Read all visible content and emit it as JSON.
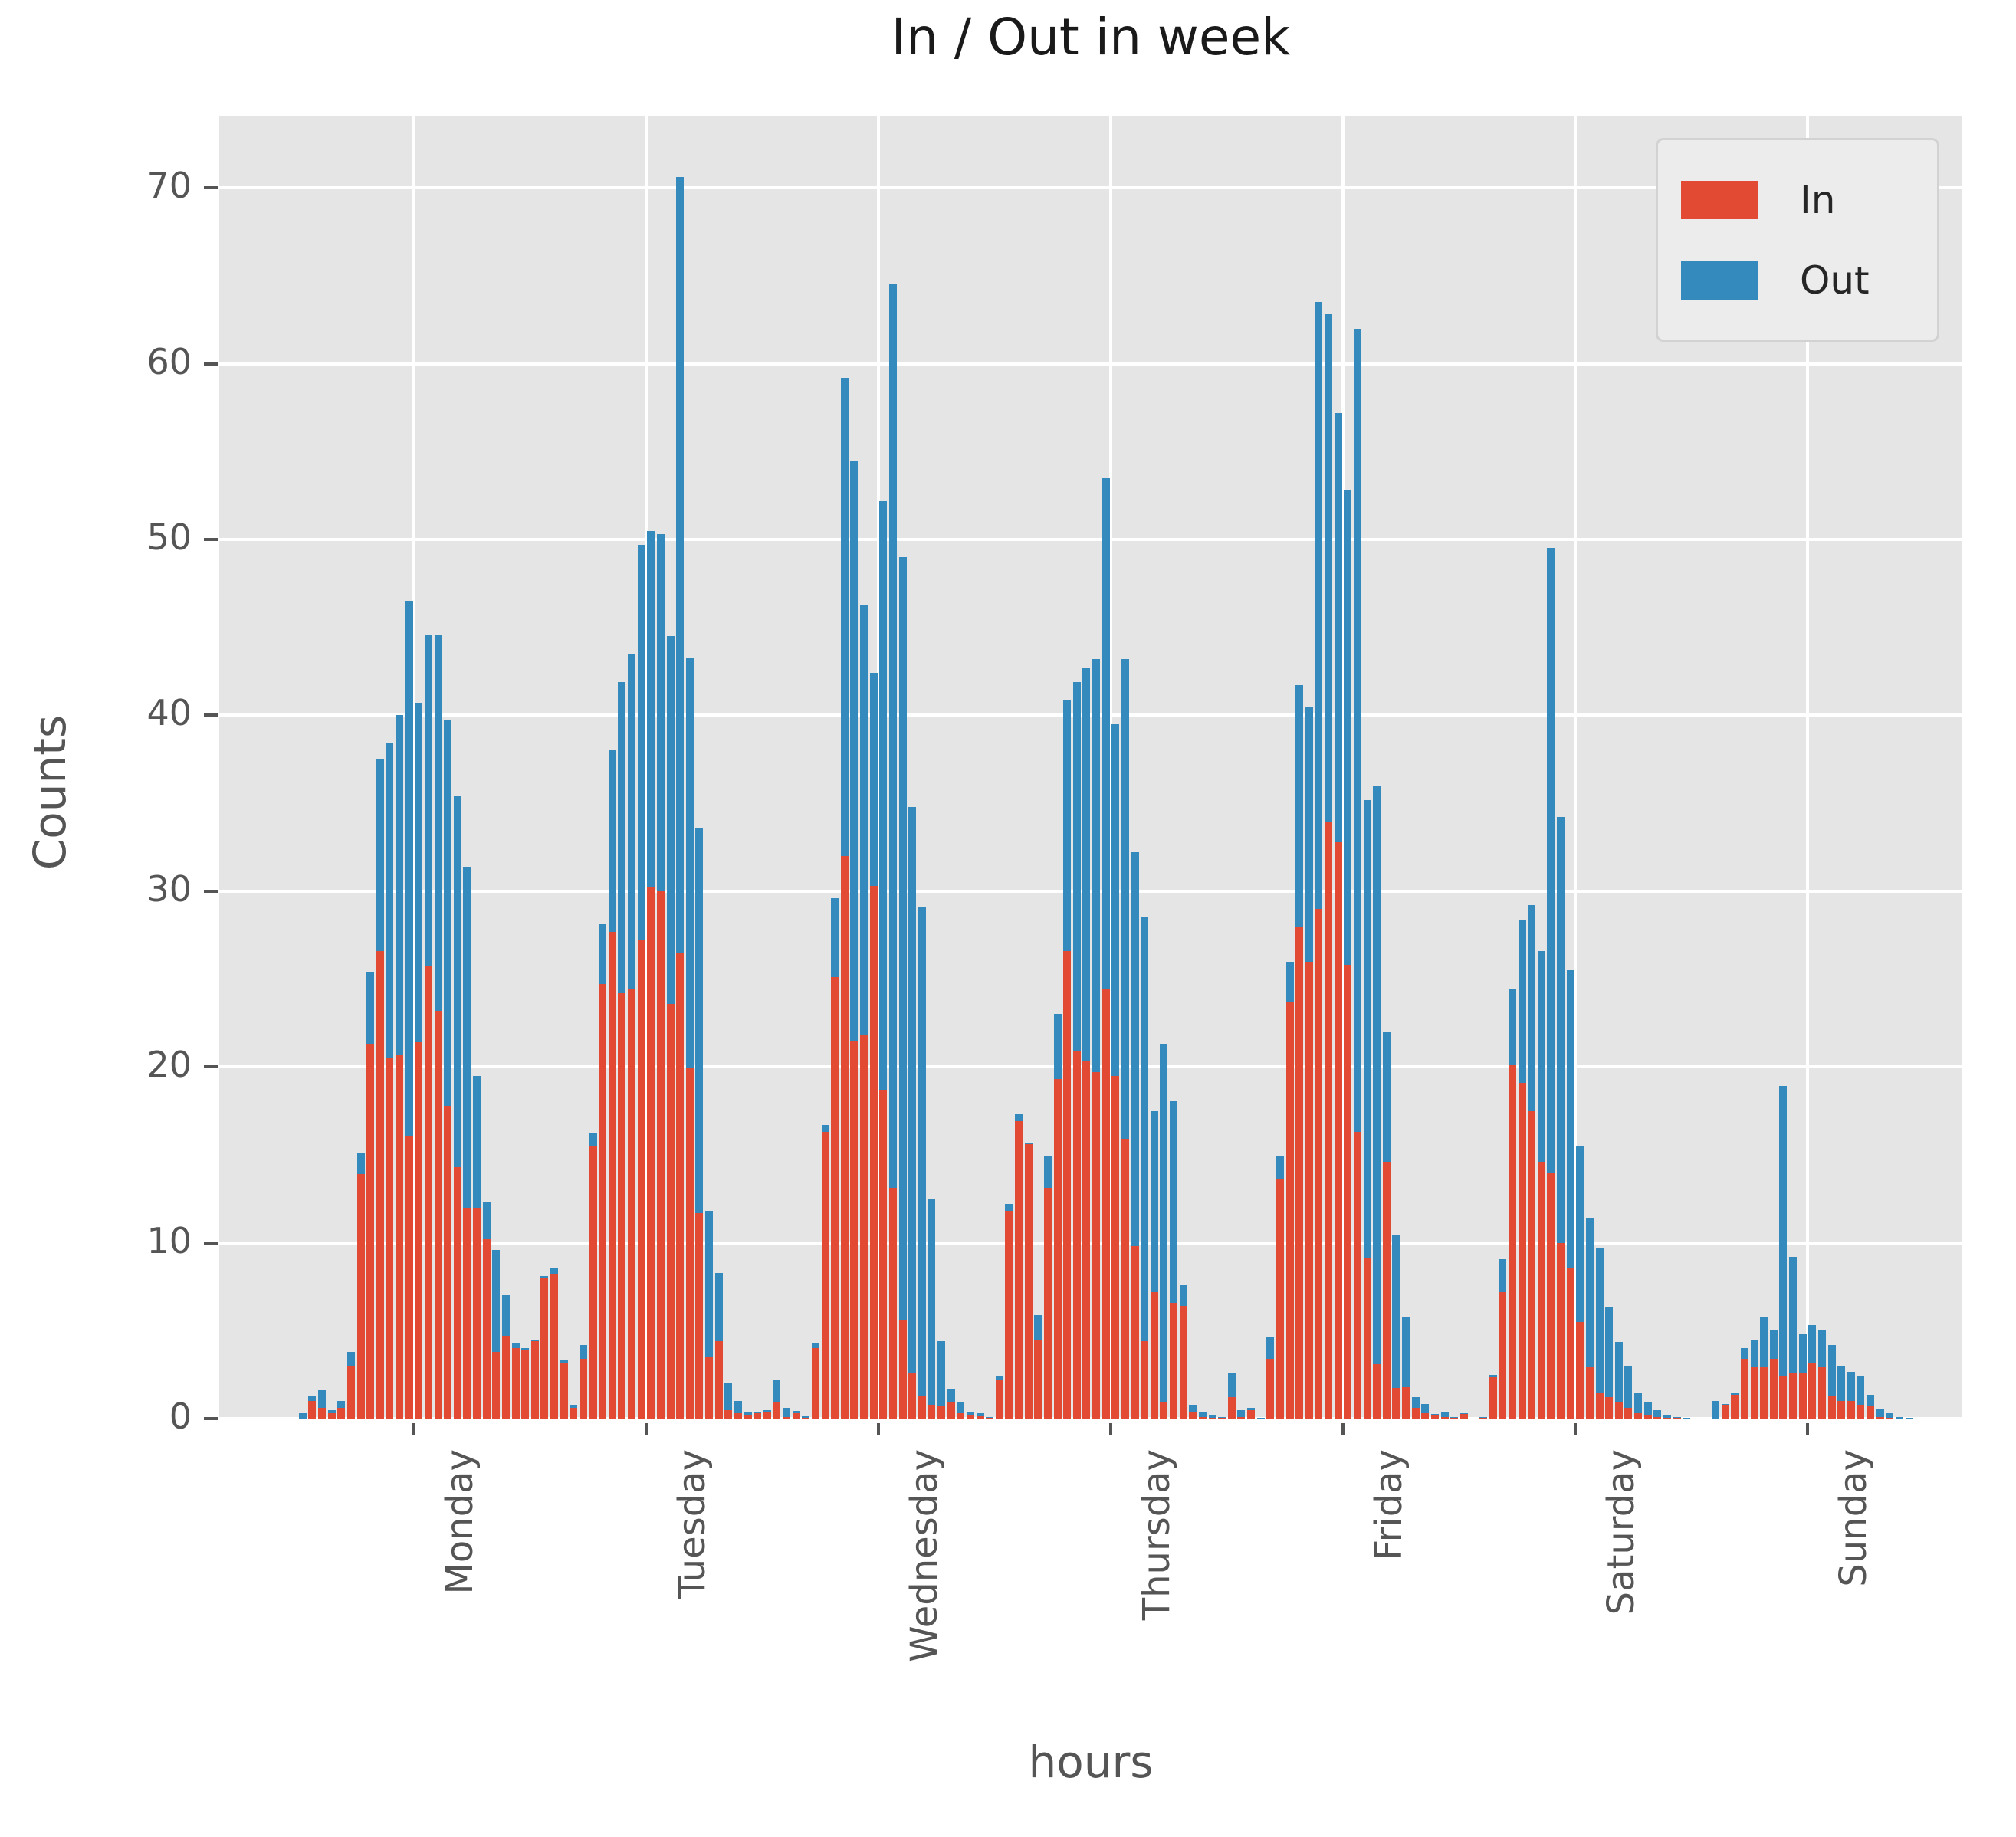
{
  "title": "In / Out in week",
  "axes": {
    "x_label": "hours",
    "y_label": "Counts",
    "y_ticks": [
      0,
      10,
      20,
      30,
      40,
      50,
      60,
      70
    ],
    "x_ticks": [
      "Monday",
      "Tuesday",
      "Wednesday",
      "Thursday",
      "Friday",
      "Saturday",
      "Sunday"
    ]
  },
  "legend": {
    "items": [
      {
        "label": "In",
        "color": "#e24a33"
      },
      {
        "label": "Out",
        "color": "#348abd"
      }
    ],
    "position": "upper right"
  },
  "colors": {
    "in": "#e24a33",
    "out": "#348abd",
    "plot_background": "#e5e5e5",
    "grid": "#ffffff",
    "tick_text": "#555555",
    "title_text": "#1a1a1a"
  },
  "chart_data": {
    "type": "bar",
    "stacked": true,
    "title": "In / Out in week",
    "xlabel": "hours",
    "ylabel": "Counts",
    "ylim": [
      0,
      74
    ],
    "grid": true,
    "x_structure": "7 weekdays x 24 hourly bins (168 bars), day tick centered in each day",
    "legend_entries": [
      "In",
      "Out"
    ],
    "days": [
      {
        "name": "Monday",
        "in": [
          0,
          1.0,
          0.6,
          0.3,
          0.6,
          3.0,
          13.9,
          21.3,
          26.6,
          20.5,
          20.7,
          16.1,
          21.4,
          25.7,
          23.2,
          17.8,
          14.3,
          12.0,
          12.0,
          10.2,
          3.8,
          4.7,
          4.0,
          3.9
        ],
        "out": [
          0.3,
          0.3,
          1.0,
          0.2,
          0.4,
          0.8,
          1.2,
          4.1,
          10.9,
          17.9,
          19.3,
          30.4,
          19.3,
          18.9,
          21.4,
          21.9,
          21.1,
          19.4,
          7.5,
          2.1,
          5.8,
          2.3,
          0.3,
          0.1
        ]
      },
      {
        "name": "Tuesday",
        "in": [
          4.4,
          8.0,
          8.2,
          3.2,
          0.6,
          3.4,
          15.5,
          24.7,
          27.7,
          24.2,
          24.4,
          27.2,
          30.2,
          30.0,
          23.6,
          26.5,
          19.9,
          11.7,
          3.5,
          4.4,
          0.5,
          0.3,
          0.2,
          0.3
        ],
        "out": [
          0.1,
          0.1,
          0.4,
          0.1,
          0.2,
          0.8,
          0.7,
          3.4,
          10.3,
          17.7,
          19.1,
          22.5,
          20.3,
          20.3,
          20.9,
          44.1,
          23.4,
          21.9,
          8.3,
          3.9,
          1.5,
          0.7,
          0.2,
          0.1
        ]
      },
      {
        "name": "Wednesday",
        "in": [
          0.35,
          0.9,
          0.1,
          0.3,
          0.05,
          4.0,
          16.3,
          25.1,
          32.0,
          21.5,
          21.8,
          30.3,
          18.7,
          13.1,
          5.6,
          2.6,
          1.3,
          0.8,
          0.7,
          0.9,
          0.3,
          0.2,
          0.15,
          0.05
        ],
        "out": [
          0.15,
          1.3,
          0.5,
          0.15,
          0.1,
          0.3,
          0.4,
          4.5,
          27.2,
          33.0,
          24.5,
          12.1,
          33.5,
          51.4,
          43.4,
          32.2,
          27.8,
          11.7,
          3.7,
          0.8,
          0.6,
          0.2,
          0.15,
          0.05
        ]
      },
      {
        "name": "Thursday",
        "in": [
          2.2,
          11.8,
          16.9,
          15.6,
          4.5,
          13.1,
          19.3,
          26.6,
          20.9,
          20.3,
          19.7,
          24.4,
          19.5,
          15.9,
          9.8,
          4.4,
          7.2,
          0.9,
          6.6,
          6.4,
          0.4,
          0.1,
          0.05,
          0.05
        ],
        "out": [
          0.2,
          0.4,
          0.4,
          0.1,
          1.4,
          1.8,
          3.7,
          14.3,
          21.0,
          22.4,
          23.5,
          29.1,
          20.0,
          27.3,
          22.4,
          24.1,
          10.3,
          20.4,
          11.5,
          1.2,
          0.4,
          0.3,
          0.15,
          0.05
        ]
      },
      {
        "name": "Friday",
        "in": [
          1.2,
          0.1,
          0.5,
          0.02,
          3.4,
          13.6,
          23.7,
          28.0,
          26.0,
          29.0,
          33.9,
          32.8,
          25.8,
          16.3,
          9.1,
          3.1,
          14.6,
          1.75,
          1.8,
          0.6,
          0.3,
          0.2,
          0.1,
          0.05
        ],
        "out": [
          1.4,
          0.4,
          0.1,
          0.03,
          1.2,
          1.3,
          2.3,
          13.7,
          14.5,
          34.5,
          28.9,
          24.4,
          27.0,
          45.7,
          26.1,
          32.9,
          7.4,
          8.65,
          4.0,
          0.6,
          0.55,
          0.05,
          0.3,
          0.05
        ]
      },
      {
        "name": "Saturday",
        "in": [
          0.25,
          0,
          0.05,
          2.35,
          7.2,
          20.1,
          19.1,
          17.5,
          14.6,
          14.0,
          10.0,
          8.6,
          5.5,
          2.9,
          1.5,
          1.2,
          0.9,
          0.6,
          0.3,
          0.2,
          0.1,
          0.05,
          0.05,
          0
        ],
        "out": [
          0.05,
          0,
          0.05,
          0.15,
          1.85,
          4.3,
          9.3,
          11.7,
          12.0,
          35.5,
          24.2,
          16.9,
          10.0,
          8.5,
          8.2,
          5.1,
          3.45,
          2.35,
          1.15,
          0.7,
          0.4,
          0.15,
          0.05,
          0.05
        ]
      },
      {
        "name": "Sunday",
        "in": [
          0,
          0,
          0,
          0.8,
          1.35,
          3.4,
          2.9,
          2.9,
          3.4,
          2.4,
          2.6,
          2.6,
          3.2,
          2.9,
          1.3,
          1.0,
          1.0,
          0.8,
          0.7,
          0.1,
          0.05,
          0,
          0,
          0
        ],
        "out": [
          0,
          0,
          1.0,
          0.05,
          0.15,
          0.6,
          1.6,
          2.9,
          1.6,
          16.5,
          6.6,
          2.2,
          2.1,
          2.1,
          2.9,
          2.0,
          1.65,
          1.6,
          0.65,
          0.45,
          0.25,
          0.1,
          0.05,
          0
        ]
      }
    ]
  }
}
